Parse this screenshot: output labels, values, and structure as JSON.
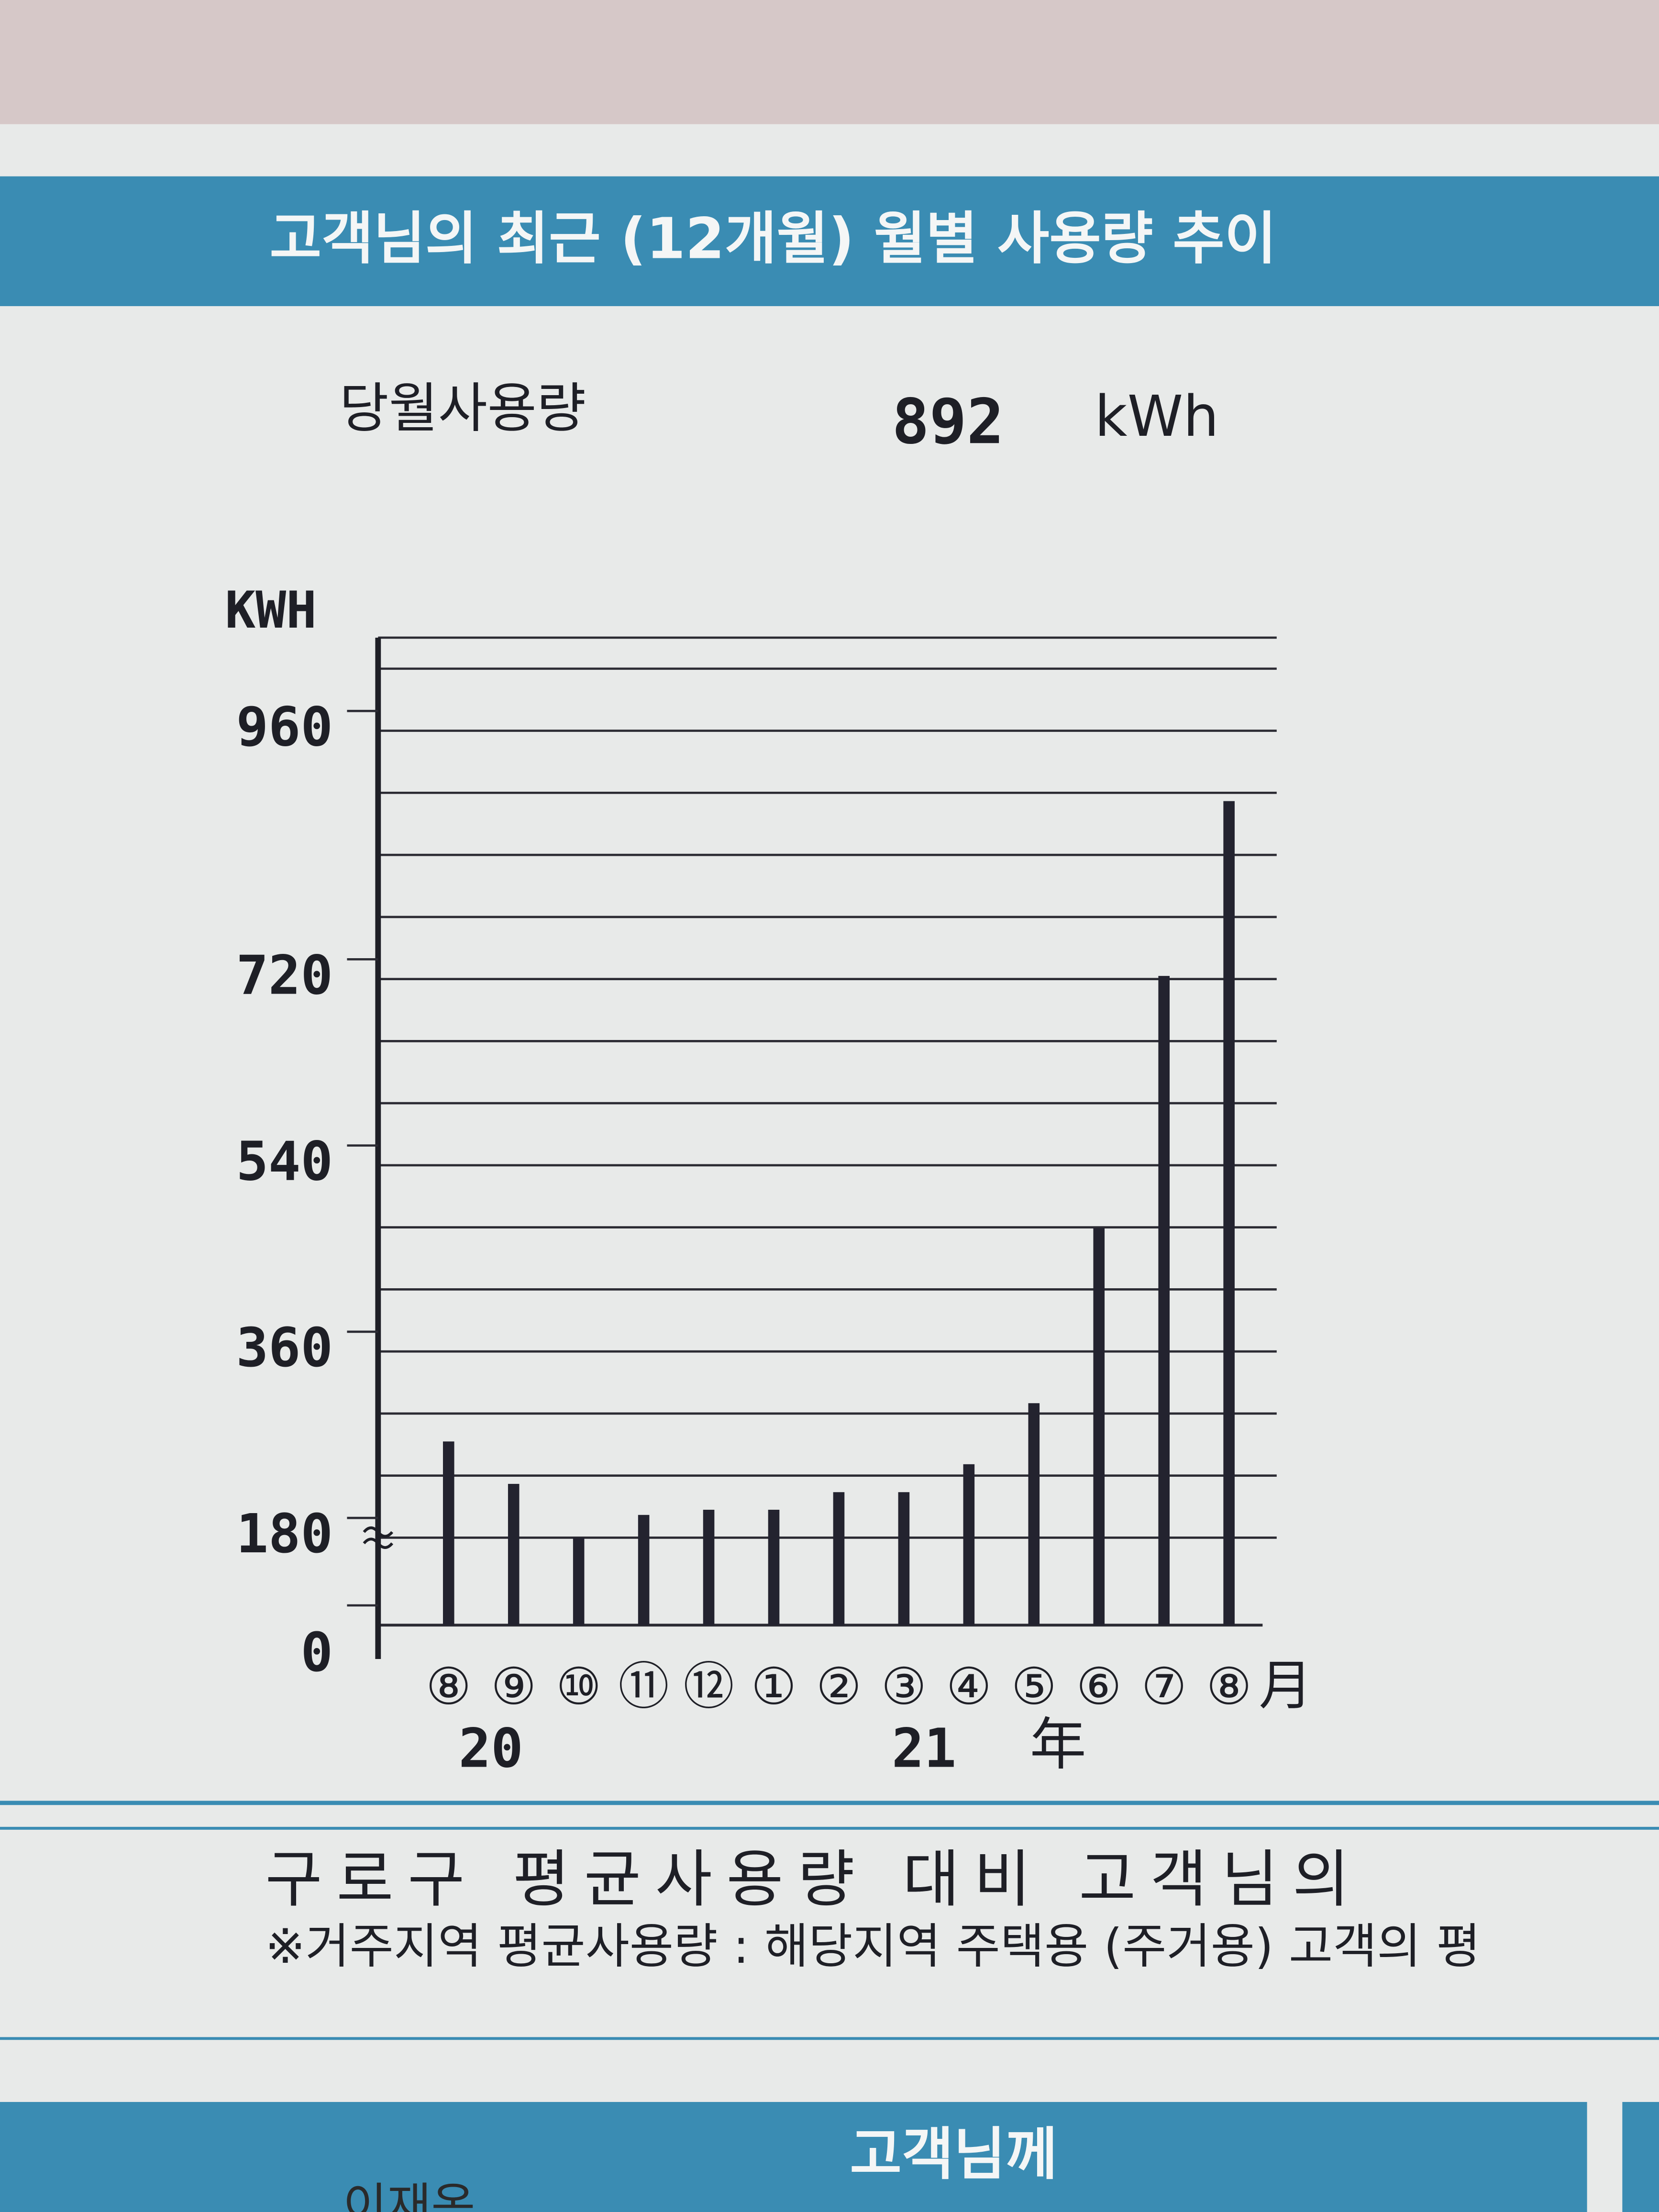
{
  "header": {
    "title": "고객님의 최근 (12개월) 월별 사용량 추이"
  },
  "current_usage": {
    "label": "당월사용량",
    "value": "892",
    "unit": "kWh"
  },
  "chart_data": {
    "type": "bar",
    "y_label": "KWH",
    "categories": [
      "⑧",
      "⑨",
      "⑩",
      "⑪",
      "⑫",
      "①",
      "②",
      "③",
      "④",
      "⑤",
      "⑥",
      "⑦",
      "⑧"
    ],
    "x_unit": "月",
    "year_labels": [
      "20",
      "21"
    ],
    "year_unit": "年",
    "values": [
      273,
      232,
      180,
      202,
      207,
      207,
      224,
      224,
      251,
      310,
      479,
      723,
      892
    ],
    "color": "#23232f",
    "ylim": [
      0,
      1050
    ],
    "yticks": [
      0,
      180,
      360,
      540,
      720,
      960
    ],
    "ybreak": 180,
    "grid": true,
    "grid_lines": [
      180,
      240,
      300,
      360,
      420,
      480,
      540,
      600,
      660,
      720,
      780,
      840,
      900,
      960,
      1020
    ]
  },
  "footer": {
    "line1": "구로구 평균사용량 대비 고객님의",
    "line2": "※거주지역 평균사용량 : 해당지역 주택용 (주거용) 고객의 평",
    "tab": "고객님께",
    "name": "이재옥"
  }
}
